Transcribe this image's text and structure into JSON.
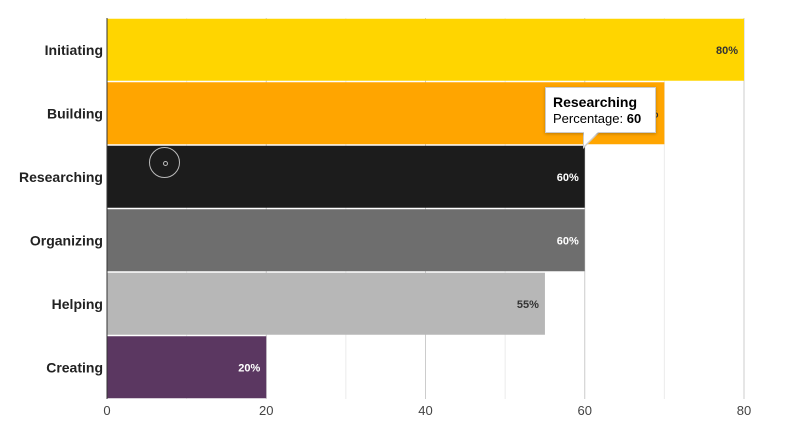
{
  "chart_data": {
    "type": "bar",
    "orientation": "horizontal",
    "categories": [
      "Initiating",
      "Building",
      "Researching",
      "Organizing",
      "Helping",
      "Creating"
    ],
    "values": [
      80,
      70,
      60,
      60,
      55,
      20
    ],
    "data_labels": [
      "80%",
      "70%",
      "60%",
      "60%",
      "55%",
      "20%"
    ],
    "colors": [
      "#FFD500",
      "#FFA500",
      "#1C1C1C",
      "#6E6E6E",
      "#B7B7B7",
      "#5B3761"
    ],
    "label_colors": [
      "#333333",
      "#333333",
      "#ffffff",
      "#ffffff",
      "#333333",
      "#ffffff"
    ],
    "xlim": [
      0,
      80
    ],
    "xticks": [
      0,
      20,
      40,
      60,
      80
    ],
    "grid": true,
    "title": "",
    "xlabel": "",
    "ylabel": ""
  },
  "tooltip": {
    "title": "Researching",
    "label": "Percentage: ",
    "value": "60"
  }
}
